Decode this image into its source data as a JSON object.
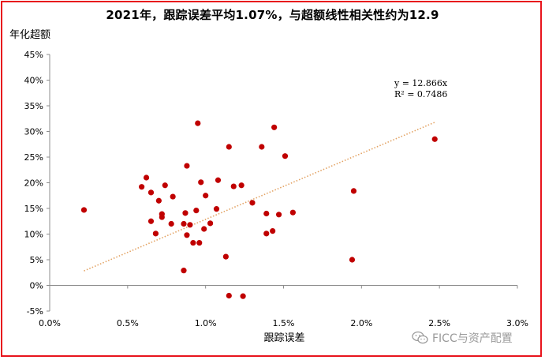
{
  "chart_data": {
    "type": "scatter",
    "title": "2021年，跟踪误差平均1.07%，与超额线性相关性约为12.9",
    "xlabel": "跟踪误差",
    "ylabel": "年化超额",
    "xlim": [
      0.0,
      3.0
    ],
    "ylim": [
      -5,
      45
    ],
    "x_ticks": [
      "0.0%",
      "0.5%",
      "1.0%",
      "1.5%",
      "2.0%",
      "2.5%",
      "3.0%"
    ],
    "y_ticks": [
      "-5%",
      "0%",
      "5%",
      "10%",
      "15%",
      "20%",
      "25%",
      "30%",
      "35%",
      "40%",
      "45%"
    ],
    "x_unit": "%",
    "y_unit": "%",
    "grid": false,
    "point_color": "#c00000",
    "trendline_color": "#e3a364",
    "trendline": {
      "type": "linear",
      "slope": 12.866,
      "x_range": [
        0.22,
        2.47
      ],
      "equation_label": "y = 12.866x",
      "r2_label": "R² = 0.7486"
    },
    "points": [
      {
        "x": 0.22,
        "y": 14.7
      },
      {
        "x": 0.59,
        "y": 19.2
      },
      {
        "x": 0.62,
        "y": 21.0
      },
      {
        "x": 0.65,
        "y": 18.1
      },
      {
        "x": 0.65,
        "y": 12.5
      },
      {
        "x": 0.68,
        "y": 10.1
      },
      {
        "x": 0.7,
        "y": 16.5
      },
      {
        "x": 0.72,
        "y": 13.9
      },
      {
        "x": 0.72,
        "y": 13.3
      },
      {
        "x": 0.74,
        "y": 19.5
      },
      {
        "x": 0.78,
        "y": 12.0
      },
      {
        "x": 0.79,
        "y": 17.3
      },
      {
        "x": 0.86,
        "y": 12.0
      },
      {
        "x": 0.86,
        "y": 2.9
      },
      {
        "x": 0.87,
        "y": 14.1
      },
      {
        "x": 0.88,
        "y": 23.3
      },
      {
        "x": 0.88,
        "y": 9.8
      },
      {
        "x": 0.9,
        "y": 11.8
      },
      {
        "x": 0.92,
        "y": 8.3
      },
      {
        "x": 0.94,
        "y": 14.6
      },
      {
        "x": 0.95,
        "y": 31.6
      },
      {
        "x": 0.96,
        "y": 8.3
      },
      {
        "x": 0.97,
        "y": 20.1
      },
      {
        "x": 0.99,
        "y": 11.0
      },
      {
        "x": 1.0,
        "y": 17.5
      },
      {
        "x": 1.03,
        "y": 12.1
      },
      {
        "x": 1.07,
        "y": 14.9
      },
      {
        "x": 1.08,
        "y": 20.5
      },
      {
        "x": 1.13,
        "y": 5.6
      },
      {
        "x": 1.15,
        "y": 27.0
      },
      {
        "x": 1.15,
        "y": -2.0
      },
      {
        "x": 1.18,
        "y": 19.3
      },
      {
        "x": 1.23,
        "y": 19.5
      },
      {
        "x": 1.24,
        "y": -2.1
      },
      {
        "x": 1.3,
        "y": 16.1
      },
      {
        "x": 1.36,
        "y": 27.0
      },
      {
        "x": 1.39,
        "y": 14.0
      },
      {
        "x": 1.39,
        "y": 10.1
      },
      {
        "x": 1.43,
        "y": 10.6
      },
      {
        "x": 1.44,
        "y": 30.8
      },
      {
        "x": 1.47,
        "y": 13.8
      },
      {
        "x": 1.51,
        "y": 25.2
      },
      {
        "x": 1.56,
        "y": 14.2
      },
      {
        "x": 1.94,
        "y": 5.0
      },
      {
        "x": 1.95,
        "y": 18.4
      },
      {
        "x": 2.47,
        "y": 28.5
      }
    ]
  },
  "watermark": {
    "text": "FICC与资产配置",
    "icon": "wechat-icon"
  }
}
